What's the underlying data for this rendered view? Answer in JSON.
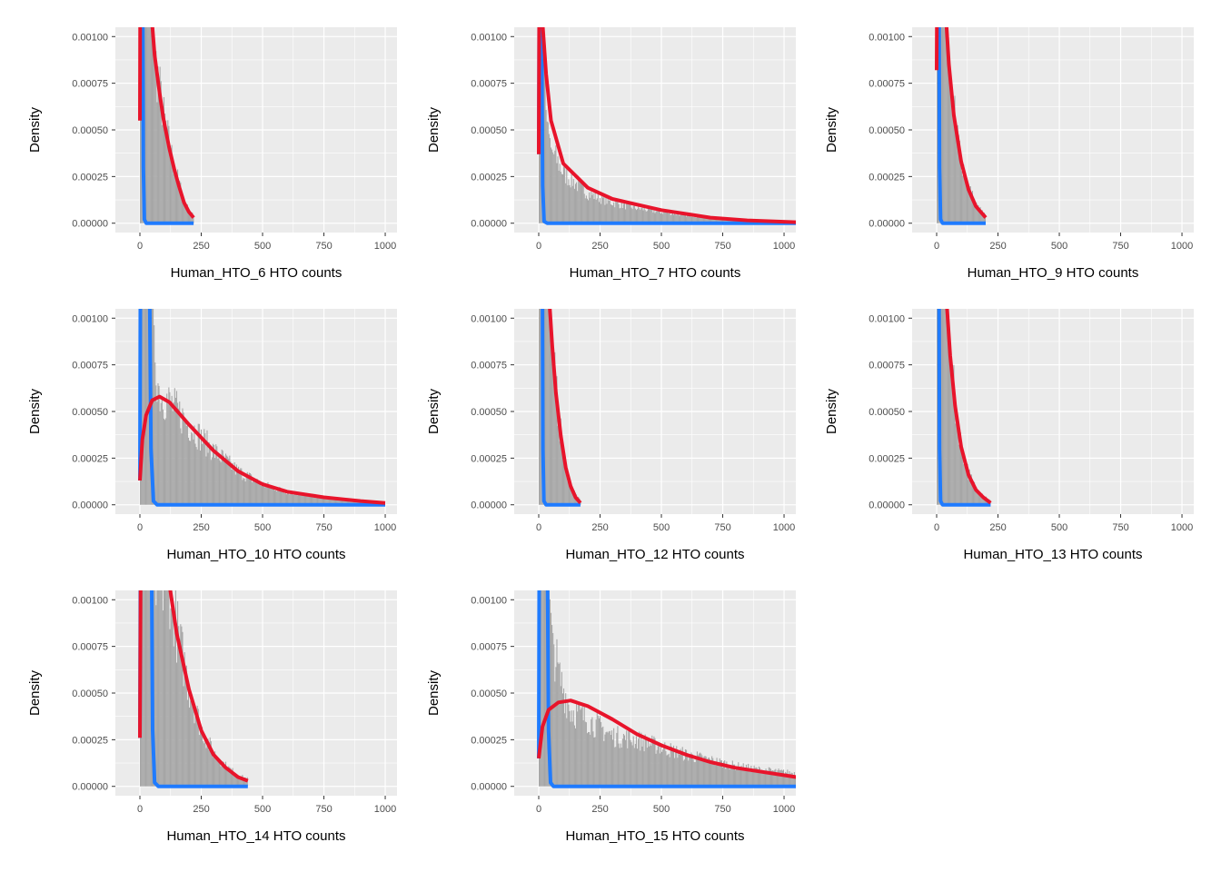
{
  "chart_data": {
    "type": "histogram-with-density-lines",
    "ylabel": "Density",
    "ylim": [
      -5e-05,
      0.00105
    ],
    "xlim": [
      -100,
      1048
    ],
    "yticks": [
      "0.00000",
      "0.00025",
      "0.00050",
      "0.00075",
      "0.00100"
    ],
    "xticks": [
      "0",
      "250",
      "500",
      "750",
      "1000"
    ],
    "grid": true,
    "colors": {
      "hist": "#A6A6A6",
      "red": "#E8142B",
      "blue": "#1F7BFF",
      "panel": "#EBEBEB"
    },
    "panels": [
      {
        "xlabel": "Human_HTO_6 HTO counts",
        "red": [
          [
            0,
            0.00055
          ],
          [
            1,
            0.0011
          ],
          [
            48,
            0.0011
          ],
          [
            60,
            0.0009
          ],
          [
            80,
            0.0007
          ],
          [
            96,
            0.00056
          ],
          [
            120,
            0.0004
          ],
          [
            140,
            0.00029
          ],
          [
            159,
            0.0002
          ],
          [
            180,
            0.00011
          ],
          [
            200,
            6e-05
          ],
          [
            219,
            3e-05
          ]
        ],
        "blue": [
          [
            12,
            0.0011
          ],
          [
            14,
            0.0003
          ],
          [
            18,
            2e-05
          ],
          [
            26,
            0
          ],
          [
            219,
            0
          ]
        ],
        "hist": [
          [
            0,
            0.0011
          ],
          [
            50,
            0.0011
          ],
          [
            60,
            0.0009
          ],
          [
            96,
            0.00058
          ],
          [
            140,
            0.0003
          ],
          [
            159,
            0.00022
          ],
          [
            180,
            0.00012
          ],
          [
            200,
            7e-05
          ],
          [
            219,
            4e-05
          ]
        ]
      },
      {
        "xlabel": "Human_HTO_7 HTO counts",
        "red": [
          [
            0,
            0.00037
          ],
          [
            2,
            0.0011
          ],
          [
            14,
            0.0011
          ],
          [
            30,
            0.0008
          ],
          [
            50,
            0.00055
          ],
          [
            100,
            0.00032
          ],
          [
            200,
            0.00019
          ],
          [
            300,
            0.00013
          ],
          [
            400,
            0.0001
          ],
          [
            500,
            7e-05
          ],
          [
            700,
            3e-05
          ],
          [
            850,
            1.5e-05
          ],
          [
            1050,
            5e-06
          ]
        ],
        "blue": [
          [
            0,
            0.00037
          ],
          [
            2,
            0.0011
          ],
          [
            12,
            0.0011
          ],
          [
            16,
            0.0002
          ],
          [
            22,
            1e-05
          ],
          [
            35,
            0
          ],
          [
            1050,
            0
          ]
        ],
        "hist": [
          [
            0,
            0.0011
          ],
          [
            20,
            0.0011
          ],
          [
            30,
            0.0006
          ],
          [
            50,
            0.0004
          ],
          [
            100,
            0.00027
          ],
          [
            200,
            0.00016
          ],
          [
            300,
            0.00011
          ],
          [
            400,
            8e-05
          ],
          [
            500,
            6e-05
          ],
          [
            700,
            3e-05
          ],
          [
            1050,
            5e-06
          ]
        ]
      },
      {
        "xlabel": "Human_HTO_9 HTO counts",
        "red": [
          [
            0,
            0.00082
          ],
          [
            1,
            0.0011
          ],
          [
            38,
            0.0011
          ],
          [
            50,
            0.00085
          ],
          [
            70,
            0.00058
          ],
          [
            100,
            0.00033
          ],
          [
            130,
            0.00018
          ],
          [
            160,
            9e-05
          ],
          [
            200,
            3e-05
          ]
        ],
        "blue": [
          [
            10,
            0.0011
          ],
          [
            12,
            0.0003
          ],
          [
            16,
            2e-05
          ],
          [
            24,
            0
          ],
          [
            200,
            0
          ]
        ],
        "hist": [
          [
            0,
            0.0011
          ],
          [
            40,
            0.0011
          ],
          [
            50,
            0.0009
          ],
          [
            70,
            0.0006
          ],
          [
            100,
            0.00035
          ],
          [
            130,
            0.0002
          ],
          [
            160,
            0.0001
          ],
          [
            200,
            4e-05
          ]
        ]
      },
      {
        "xlabel": "Human_HTO_10 HTO counts",
        "red": [
          [
            0,
            0.00013
          ],
          [
            10,
            0.00035
          ],
          [
            25,
            0.00048
          ],
          [
            50,
            0.00056
          ],
          [
            80,
            0.00058
          ],
          [
            120,
            0.00055
          ],
          [
            200,
            0.00043
          ],
          [
            300,
            0.00029
          ],
          [
            400,
            0.00018
          ],
          [
            500,
            0.00011
          ],
          [
            600,
            7e-05
          ],
          [
            750,
            4e-05
          ],
          [
            900,
            2e-05
          ],
          [
            1000,
            1e-05
          ]
        ],
        "blue": [
          [
            0,
            0.00013
          ],
          [
            2,
            0.0011
          ],
          [
            8,
            0.0011
          ],
          [
            10,
            0.0011
          ],
          [
            14,
            0.0011
          ],
          [
            40,
            0.0011
          ],
          [
            45,
            0.0003
          ],
          [
            55,
            2e-05
          ],
          [
            70,
            0
          ],
          [
            1000,
            0
          ]
        ],
        "hist": [
          [
            0,
            0.0011
          ],
          [
            55,
            0.0011
          ],
          [
            60,
            0.0008
          ],
          [
            80,
            0.0006
          ],
          [
            120,
            0.00055
          ],
          [
            200,
            0.00043
          ],
          [
            300,
            0.00029
          ],
          [
            400,
            0.00018
          ],
          [
            500,
            0.00011
          ],
          [
            600,
            7e-05
          ],
          [
            750,
            4e-05
          ],
          [
            900,
            2e-05
          ],
          [
            1000,
            1e-05
          ]
        ]
      },
      {
        "xlabel": "Human_HTO_12 HTO counts",
        "red": [
          [
            43,
            0.0011
          ],
          [
            55,
            0.00085
          ],
          [
            70,
            0.0006
          ],
          [
            90,
            0.00037
          ],
          [
            110,
            0.0002
          ],
          [
            130,
            0.0001
          ],
          [
            150,
            4e-05
          ],
          [
            170,
            1e-05
          ]
        ],
        "blue": [
          [
            15,
            0.0011
          ],
          [
            17,
            0.0003
          ],
          [
            21,
            2e-05
          ],
          [
            30,
            0
          ],
          [
            170,
            0
          ]
        ],
        "hist": [
          [
            0,
            0.0011
          ],
          [
            45,
            0.0011
          ],
          [
            55,
            0.00088
          ],
          [
            70,
            0.00062
          ],
          [
            90,
            0.00038
          ],
          [
            110,
            0.0002
          ],
          [
            130,
            0.0001
          ],
          [
            170,
            2e-05
          ]
        ]
      },
      {
        "xlabel": "Human_HTO_13 HTO counts",
        "red": [
          [
            40,
            0.0011
          ],
          [
            55,
            0.0008
          ],
          [
            75,
            0.00053
          ],
          [
            100,
            0.00031
          ],
          [
            130,
            0.00016
          ],
          [
            160,
            8e-05
          ],
          [
            190,
            4e-05
          ],
          [
            220,
            1e-05
          ]
        ],
        "blue": [
          [
            10,
            0.0011
          ],
          [
            12,
            0.0003
          ],
          [
            16,
            2e-05
          ],
          [
            24,
            0
          ],
          [
            220,
            0
          ]
        ],
        "hist": [
          [
            0,
            0.0011
          ],
          [
            40,
            0.0011
          ],
          [
            55,
            0.0008
          ],
          [
            75,
            0.00055
          ],
          [
            100,
            0.00032
          ],
          [
            130,
            0.00017
          ],
          [
            160,
            9e-05
          ],
          [
            220,
            2e-05
          ]
        ]
      },
      {
        "xlabel": "Human_HTO_14 HTO counts",
        "red": [
          [
            0,
            0.00026
          ],
          [
            3,
            0.0011
          ],
          [
            118,
            0.0011
          ],
          [
            150,
            0.00082
          ],
          [
            200,
            0.00052
          ],
          [
            250,
            0.0003
          ],
          [
            300,
            0.00017
          ],
          [
            350,
            0.0001
          ],
          [
            400,
            5e-05
          ],
          [
            440,
            3e-05
          ]
        ],
        "blue": [
          [
            0,
            0.00026
          ],
          [
            2,
            0.0011
          ],
          [
            48,
            0.0011
          ],
          [
            52,
            0.0003
          ],
          [
            60,
            2e-05
          ],
          [
            75,
            0
          ],
          [
            440,
            0
          ]
        ],
        "hist": [
          [
            0,
            0.0011
          ],
          [
            120,
            0.0011
          ],
          [
            150,
            0.00085
          ],
          [
            200,
            0.00053
          ],
          [
            250,
            0.00031
          ],
          [
            300,
            0.00018
          ],
          [
            350,
            0.00011
          ],
          [
            400,
            6e-05
          ],
          [
            440,
            4e-05
          ]
        ]
      },
      {
        "xlabel": "Human_HTO_15 HTO counts",
        "red": [
          [
            0,
            0.00015
          ],
          [
            15,
            0.00032
          ],
          [
            40,
            0.00041
          ],
          [
            80,
            0.00045
          ],
          [
            130,
            0.00046
          ],
          [
            200,
            0.00043
          ],
          [
            300,
            0.00036
          ],
          [
            400,
            0.00028
          ],
          [
            500,
            0.00022
          ],
          [
            600,
            0.00017
          ],
          [
            700,
            0.00013
          ],
          [
            800,
            0.0001
          ],
          [
            900,
            8e-05
          ],
          [
            1050,
            5e-05
          ]
        ],
        "blue": [
          [
            0,
            0.00015
          ],
          [
            2,
            0.0011
          ],
          [
            8,
            0.0011
          ],
          [
            36,
            0.0011
          ],
          [
            40,
            0.0003
          ],
          [
            48,
            2e-05
          ],
          [
            60,
            0
          ],
          [
            1050,
            0
          ]
        ],
        "hist": [
          [
            0,
            0.0011
          ],
          [
            40,
            0.0011
          ],
          [
            55,
            0.00082
          ],
          [
            80,
            0.0006
          ],
          [
            130,
            0.00041
          ],
          [
            200,
            0.00036
          ],
          [
            300,
            0.00027
          ],
          [
            400,
            0.00025
          ],
          [
            500,
            0.00021
          ],
          [
            600,
            0.00017
          ],
          [
            700,
            0.00014
          ],
          [
            800,
            0.00011
          ],
          [
            900,
            9e-05
          ],
          [
            1050,
            7e-05
          ]
        ]
      }
    ]
  }
}
